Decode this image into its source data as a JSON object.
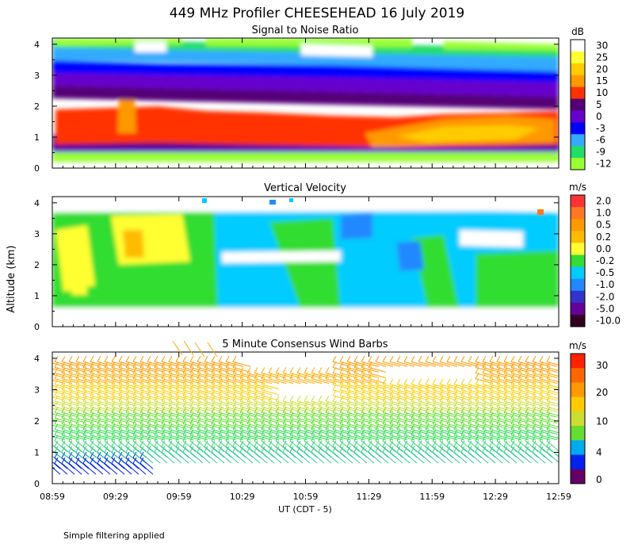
{
  "figure": {
    "title": "449 MHz Profiler CHEESEHEAD 16 July 2019",
    "ylabel": "Altitude (km)",
    "xlabel": "UT  (CDT - 5)",
    "footnote": "Simple filtering applied"
  },
  "chart_data": [
    {
      "type": "heatmap",
      "title": "Signal to Noise Ratio",
      "x_ticks": [
        "08:59",
        "09:29",
        "09:59",
        "10:29",
        "10:59",
        "11:29",
        "11:59",
        "12:29",
        "12:59"
      ],
      "y_ticks": [
        0,
        1,
        2,
        3,
        4
      ],
      "ylim": [
        0,
        4.2
      ],
      "colorbar": {
        "unit": "dB",
        "labels": [
          "30",
          "25",
          "20",
          "15",
          "10",
          "5",
          "0",
          "-3",
          "-6",
          "-9",
          "-12"
        ],
        "colors": [
          "#ffffff",
          "#ffff33",
          "#ffcc00",
          "#ff9900",
          "#ff3300",
          "#550077",
          "#6600cc",
          "#0000ff",
          "#33aaff",
          "#22dd66",
          "#99ff33"
        ]
      }
    },
    {
      "type": "heatmap",
      "title": "Vertical Velocity",
      "x_ticks": [
        "08:59",
        "09:29",
        "09:59",
        "10:29",
        "10:59",
        "11:29",
        "11:59",
        "12:29",
        "12:59"
      ],
      "y_ticks": [
        0,
        1,
        2,
        3,
        4
      ],
      "ylim": [
        0,
        4.2
      ],
      "colorbar": {
        "unit": "m/s",
        "labels": [
          "2.0",
          "1.0",
          "0.5",
          "0.2",
          "0.0",
          "-0.2",
          "-0.5",
          "-1.0",
          "-2.0",
          "-5.0",
          "-10.0"
        ],
        "colors": [
          "#ff3333",
          "#ff7722",
          "#ff9900",
          "#ffbb00",
          "#ffff33",
          "#33dd33",
          "#00ccff",
          "#2288ff",
          "#3333cc",
          "#660099",
          "#330022"
        ]
      }
    },
    {
      "type": "scatter",
      "title": "5 Minute Consensus Wind Barbs",
      "x_ticks": [
        "08:59",
        "09:29",
        "09:59",
        "10:29",
        "10:59",
        "11:29",
        "11:59",
        "12:29",
        "12:59"
      ],
      "y_ticks": [
        0,
        1,
        2,
        3,
        4
      ],
      "ylim": [
        0,
        4.2
      ],
      "colorbar": {
        "unit": "m/s",
        "labels": [
          "30",
          "20",
          "10",
          "4",
          "0"
        ],
        "colors": [
          "#ff2200",
          "#ff6600",
          "#ff9900",
          "#ffcc00",
          "#ccdd33",
          "#66dd33",
          "#00aaee",
          "#0022ee",
          "#660066"
        ]
      }
    }
  ]
}
